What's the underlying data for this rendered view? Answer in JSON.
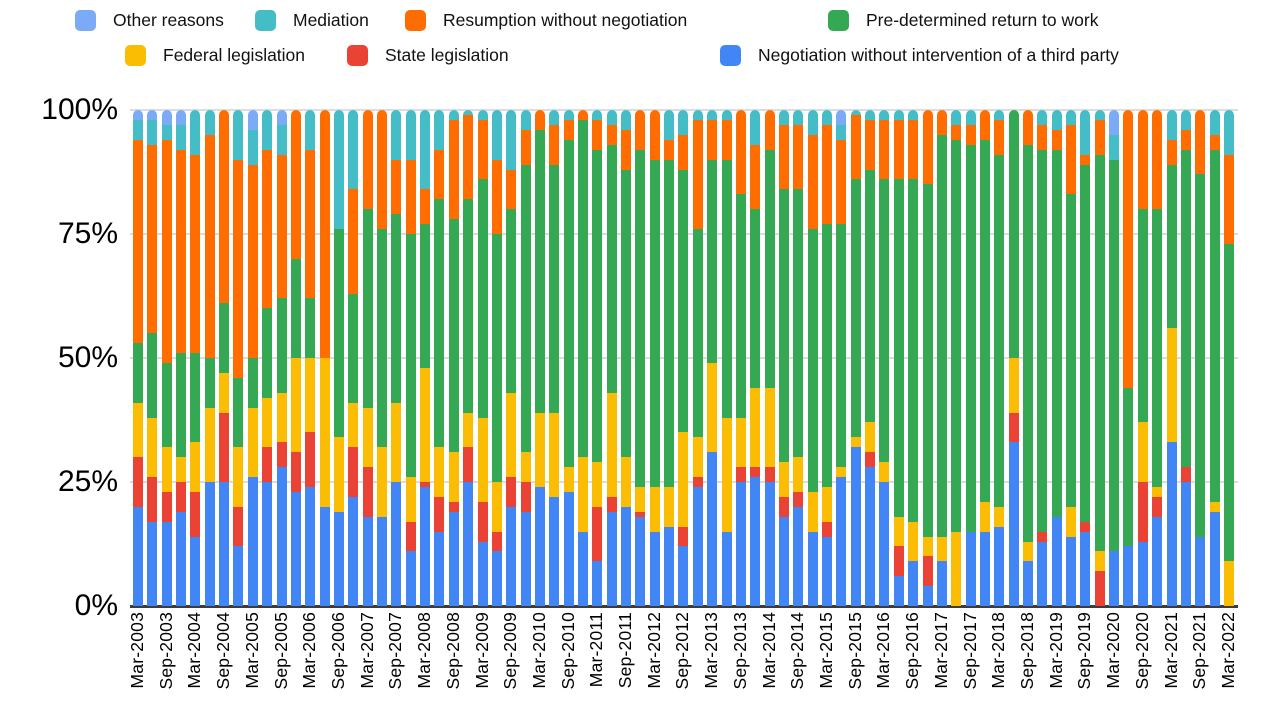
{
  "legend": {
    "row1": [
      {
        "label": "Other reasons",
        "color": "#7baaf7"
      },
      {
        "label": "Mediation",
        "color": "#45bdc6"
      },
      {
        "label": "Resumption without negotiation",
        "color": "#ff6d01"
      },
      {
        "label": "Pre-determined return to work",
        "color": "#34a853"
      }
    ],
    "row2": [
      {
        "label": "Federal legislation",
        "color": "#fbbc04"
      },
      {
        "label": "State legislation",
        "color": "#ea4335"
      },
      {
        "label": "Negotiation without intervention of a third party",
        "color": "#4285f4"
      }
    ]
  },
  "chart_data": {
    "type": "bar",
    "subtype": "100-percent-stacked-vertical",
    "title": "",
    "ylabel": "",
    "xlabel": "",
    "ylim": [
      0,
      100
    ],
    "grid": true,
    "legend_position": "top",
    "y_tick_labels": [
      "0%",
      "25%",
      "50%",
      "75%",
      "100%"
    ],
    "n_bars": 77,
    "x_ticks_every_n_bars": 2,
    "x_tick_labels": [
      "Mar-2003",
      "Sep-2003",
      "Mar-2004",
      "Sep-2004",
      "Mar-2005",
      "Sep-2005",
      "Mar-2006",
      "Sep-2006",
      "Mar-2007",
      "Sep-2007",
      "Mar-2008",
      "Sep-2008",
      "Mar-2009",
      "Sep-2009",
      "Mar-2010",
      "Sep-2010",
      "Mar-2011",
      "Sep-2011",
      "Mar-2012",
      "Sep-2012",
      "Mar-2013",
      "Sep-2013",
      "Mar-2014",
      "Sep-2014",
      "Mar-2015",
      "Sep-2015",
      "Mar-2016",
      "Sep-2016",
      "Mar-2017",
      "Sep-2017",
      "Mar-2018",
      "Sep-2018",
      "Mar-2019",
      "Sep-2019",
      "Mar-2020",
      "Sep-2020",
      "Mar-2021",
      "Sep-2021",
      "Mar-2022"
    ],
    "stacking_order_note": "series listed bottom-to-top of each bar, values in percent",
    "series": [
      {
        "name": "Negotiation without intervention of a third party",
        "color": "#4285f4",
        "values": [
          20,
          17,
          17,
          19,
          14,
          25,
          25,
          12,
          26,
          25,
          28,
          23,
          24,
          20,
          19,
          22,
          18,
          18,
          25,
          11,
          24,
          15,
          19,
          25,
          13,
          11,
          20,
          19,
          24,
          22,
          23,
          15,
          9,
          19,
          20,
          18,
          15,
          16,
          12,
          24,
          31,
          15,
          25,
          26,
          25,
          18,
          20,
          15,
          14,
          26,
          32,
          28,
          25,
          6,
          9,
          4,
          9,
          0,
          15,
          15,
          16,
          33,
          9,
          13,
          18,
          14,
          15,
          0,
          11,
          12,
          13,
          18,
          33,
          25,
          14,
          19,
          0
        ]
      },
      {
        "name": "State legislation",
        "color": "#ea4335",
        "values": [
          10,
          9,
          6,
          6,
          9,
          0,
          14,
          8,
          0,
          7,
          5,
          8,
          11,
          0,
          0,
          10,
          10,
          0,
          0,
          6,
          1,
          7,
          2,
          7,
          8,
          4,
          6,
          6,
          0,
          0,
          0,
          0,
          11,
          3,
          0,
          1,
          0,
          0,
          4,
          2,
          0,
          0,
          3,
          2,
          3,
          4,
          3,
          0,
          3,
          0,
          0,
          3,
          0,
          6,
          0,
          6,
          0,
          0,
          0,
          0,
          0,
          6,
          0,
          2,
          0,
          0,
          2,
          7,
          0,
          0,
          12,
          4,
          0,
          3,
          0,
          0,
          0
        ]
      },
      {
        "name": "Federal legislation",
        "color": "#fbbc04",
        "values": [
          11,
          12,
          9,
          5,
          10,
          15,
          8,
          12,
          14,
          10,
          10,
          19,
          15,
          30,
          15,
          9,
          12,
          14,
          16,
          9,
          23,
          10,
          10,
          7,
          17,
          10,
          17,
          6,
          15,
          17,
          5,
          15,
          9,
          21,
          10,
          5,
          9,
          8,
          19,
          8,
          18,
          23,
          10,
          16,
          16,
          7,
          7,
          8,
          7,
          2,
          2,
          6,
          4,
          6,
          8,
          4,
          5,
          15,
          0,
          6,
          4,
          11,
          4,
          0,
          0,
          6,
          0,
          4,
          0,
          0,
          12,
          2,
          23,
          0,
          0,
          2,
          9
        ]
      },
      {
        "name": "Pre-determined return to work",
        "color": "#34a853",
        "values": [
          12,
          17,
          17,
          21,
          18,
          10,
          14,
          14,
          10,
          18,
          19,
          20,
          12,
          0,
          42,
          22,
          40,
          44,
          38,
          49,
          29,
          50,
          47,
          43,
          48,
          50,
          37,
          58,
          57,
          50,
          66,
          68,
          63,
          50,
          58,
          68,
          66,
          66,
          53,
          42,
          41,
          52,
          45,
          36,
          48,
          55,
          54,
          53,
          53,
          49,
          52,
          51,
          57,
          68,
          69,
          71,
          81,
          79,
          78,
          73,
          71,
          50,
          80,
          77,
          74,
          63,
          72,
          80,
          79,
          32,
          43,
          56,
          33,
          64,
          73,
          71,
          64
        ]
      },
      {
        "name": "Resumption without negotiation",
        "color": "#ff6d01",
        "values": [
          41,
          38,
          45,
          41,
          40,
          45,
          39,
          44,
          39,
          32,
          29,
          30,
          30,
          50,
          0,
          21,
          20,
          24,
          11,
          15,
          7,
          10,
          20,
          17,
          12,
          15,
          8,
          7,
          4,
          8,
          4,
          2,
          6,
          4,
          8,
          8,
          10,
          4,
          7,
          22,
          8,
          8,
          17,
          13,
          8,
          13,
          13,
          19,
          20,
          17,
          13,
          10,
          12,
          12,
          12,
          15,
          5,
          3,
          4,
          6,
          7,
          0,
          7,
          5,
          4,
          14,
          2,
          7,
          0,
          56,
          20,
          20,
          5,
          4,
          13,
          3,
          18
        ]
      },
      {
        "name": "Mediation",
        "color": "#45bdc6",
        "values": [
          4,
          5,
          3,
          5,
          9,
          5,
          0,
          10,
          7,
          8,
          6,
          0,
          8,
          0,
          24,
          16,
          0,
          0,
          10,
          10,
          16,
          8,
          2,
          1,
          2,
          10,
          12,
          4,
          0,
          3,
          2,
          0,
          2,
          3,
          4,
          0,
          0,
          6,
          5,
          2,
          2,
          2,
          0,
          7,
          0,
          3,
          3,
          5,
          3,
          3,
          1,
          2,
          2,
          2,
          2,
          0,
          0,
          3,
          3,
          0,
          2,
          0,
          0,
          3,
          4,
          3,
          9,
          2,
          5,
          0,
          0,
          0,
          6,
          4,
          0,
          5,
          9
        ]
      },
      {
        "name": "Other reasons",
        "color": "#7baaf7",
        "values": [
          2,
          2,
          3,
          3,
          0,
          0,
          0,
          0,
          4,
          0,
          3,
          0,
          0,
          0,
          0,
          0,
          0,
          0,
          0,
          0,
          0,
          0,
          0,
          0,
          0,
          0,
          0,
          0,
          0,
          0,
          0,
          0,
          0,
          0,
          0,
          0,
          0,
          0,
          0,
          0,
          0,
          0,
          0,
          0,
          0,
          0,
          0,
          0,
          0,
          3,
          0,
          0,
          0,
          0,
          0,
          0,
          0,
          0,
          0,
          0,
          0,
          0,
          0,
          0,
          0,
          0,
          0,
          0,
          5,
          0,
          0,
          0,
          0,
          0,
          0,
          0,
          0
        ]
      }
    ]
  }
}
